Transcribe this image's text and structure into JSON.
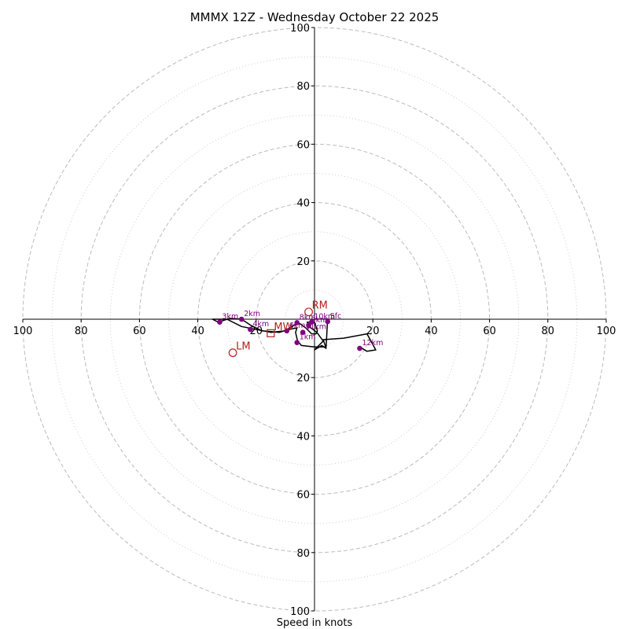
{
  "chart_data": {
    "type": "hodograph",
    "title": "MMMX 12Z - Wednesday October 22 2025",
    "xlabel": "Speed in knots",
    "units": "kt",
    "rings": [
      20,
      40,
      60,
      80,
      100
    ],
    "minor_rings": [
      10,
      30,
      50,
      70,
      90
    ],
    "x_tick_labels": [
      "100",
      "80",
      "60",
      "40",
      "20",
      "20",
      "40",
      "60",
      "80",
      "100"
    ],
    "x_tick_values": [
      -100,
      -80,
      -60,
      -40,
      -20,
      20,
      40,
      60,
      80,
      100
    ],
    "y_tick_labels": [
      "100",
      "80",
      "60",
      "40",
      "20",
      "20",
      "40",
      "60",
      "80",
      "100"
    ],
    "y_tick_values": [
      100,
      80,
      60,
      40,
      20,
      -20,
      -40,
      -60,
      -80,
      -100
    ],
    "trace": [
      [
        4.5,
        0.3
      ],
      [
        4.0,
        -9.5
      ],
      [
        0,
        -9.5
      ],
      [
        -4.5,
        -9.0
      ],
      [
        -5.8,
        -7.5
      ],
      [
        -6.5,
        -4.5
      ],
      [
        -6.0,
        -3.0
      ],
      [
        -9.0,
        -3.5
      ],
      [
        -12.0,
        -4.5
      ],
      [
        -18.0,
        -4.0
      ],
      [
        -22.0,
        -2.0
      ],
      [
        -25.0,
        0.0
      ],
      [
        -29.0,
        0.3
      ],
      [
        -33.0,
        -1.0
      ],
      [
        -35.0,
        0.0
      ],
      [
        -30.0,
        0.0
      ],
      [
        -25.0,
        -2.5
      ],
      [
        -20.0,
        -3.5
      ],
      [
        -15.0,
        -4.5
      ],
      [
        -10.0,
        -4.0
      ],
      [
        -7.0,
        -2.0
      ],
      [
        -5.0,
        -1.5
      ],
      [
        -3.0,
        -3.0
      ],
      [
        -1.0,
        -5.0
      ],
      [
        0.5,
        -5.0
      ],
      [
        1.0,
        -4.0
      ],
      [
        0.0,
        -1.0
      ],
      [
        -2.5,
        -1.0
      ],
      [
        -1.5,
        -2.8
      ],
      [
        0.8,
        -4.5
      ],
      [
        3.0,
        -7.5
      ],
      [
        2.0,
        -8.5
      ],
      [
        0.0,
        -10.5
      ],
      [
        2.5,
        -9.0
      ],
      [
        4.0,
        -10.0
      ],
      [
        3.0,
        -7.0
      ],
      [
        10.0,
        -6.5
      ],
      [
        18.0,
        -5.0
      ],
      [
        21.0,
        -10.5
      ],
      [
        18.0,
        -11.0
      ],
      [
        15.5,
        -9.5
      ]
    ],
    "height_markers": [
      {
        "label": "Sfc",
        "u": 4.5,
        "v": -0.8
      },
      {
        "label": "1km",
        "u": -6.0,
        "v": -8.0
      },
      {
        "label": "2km",
        "u": -25.0,
        "v": 0.0
      },
      {
        "label": "3km",
        "u": -32.5,
        "v": -1.0
      },
      {
        "label": "4km",
        "u": -22.0,
        "v": -3.5
      },
      {
        "label": "6km",
        "u": -9.5,
        "v": -4.0
      },
      {
        "label": "8km",
        "u": -6.0,
        "v": -1.2
      },
      {
        "label": "9km",
        "u": -2.0,
        "v": -2.2
      },
      {
        "label": "10km",
        "u": -1.0,
        "v": -1.0
      },
      {
        "label": "11km",
        "u": -4.0,
        "v": -4.5
      },
      {
        "label": "12km",
        "u": 15.5,
        "v": -10.0
      }
    ],
    "storm_motions": [
      {
        "label": "RM",
        "u": -2.0,
        "v": 2.5,
        "marker": "circle"
      },
      {
        "label": "LM",
        "u": -28.0,
        "v": -11.5,
        "marker": "circle"
      },
      {
        "label": "MW",
        "u": -15.0,
        "v": -4.8,
        "marker": "square"
      }
    ],
    "colors": {
      "trace": "#000000",
      "markers": "#800080",
      "storm": "#b22222",
      "grid": "#bbbbbb"
    }
  }
}
